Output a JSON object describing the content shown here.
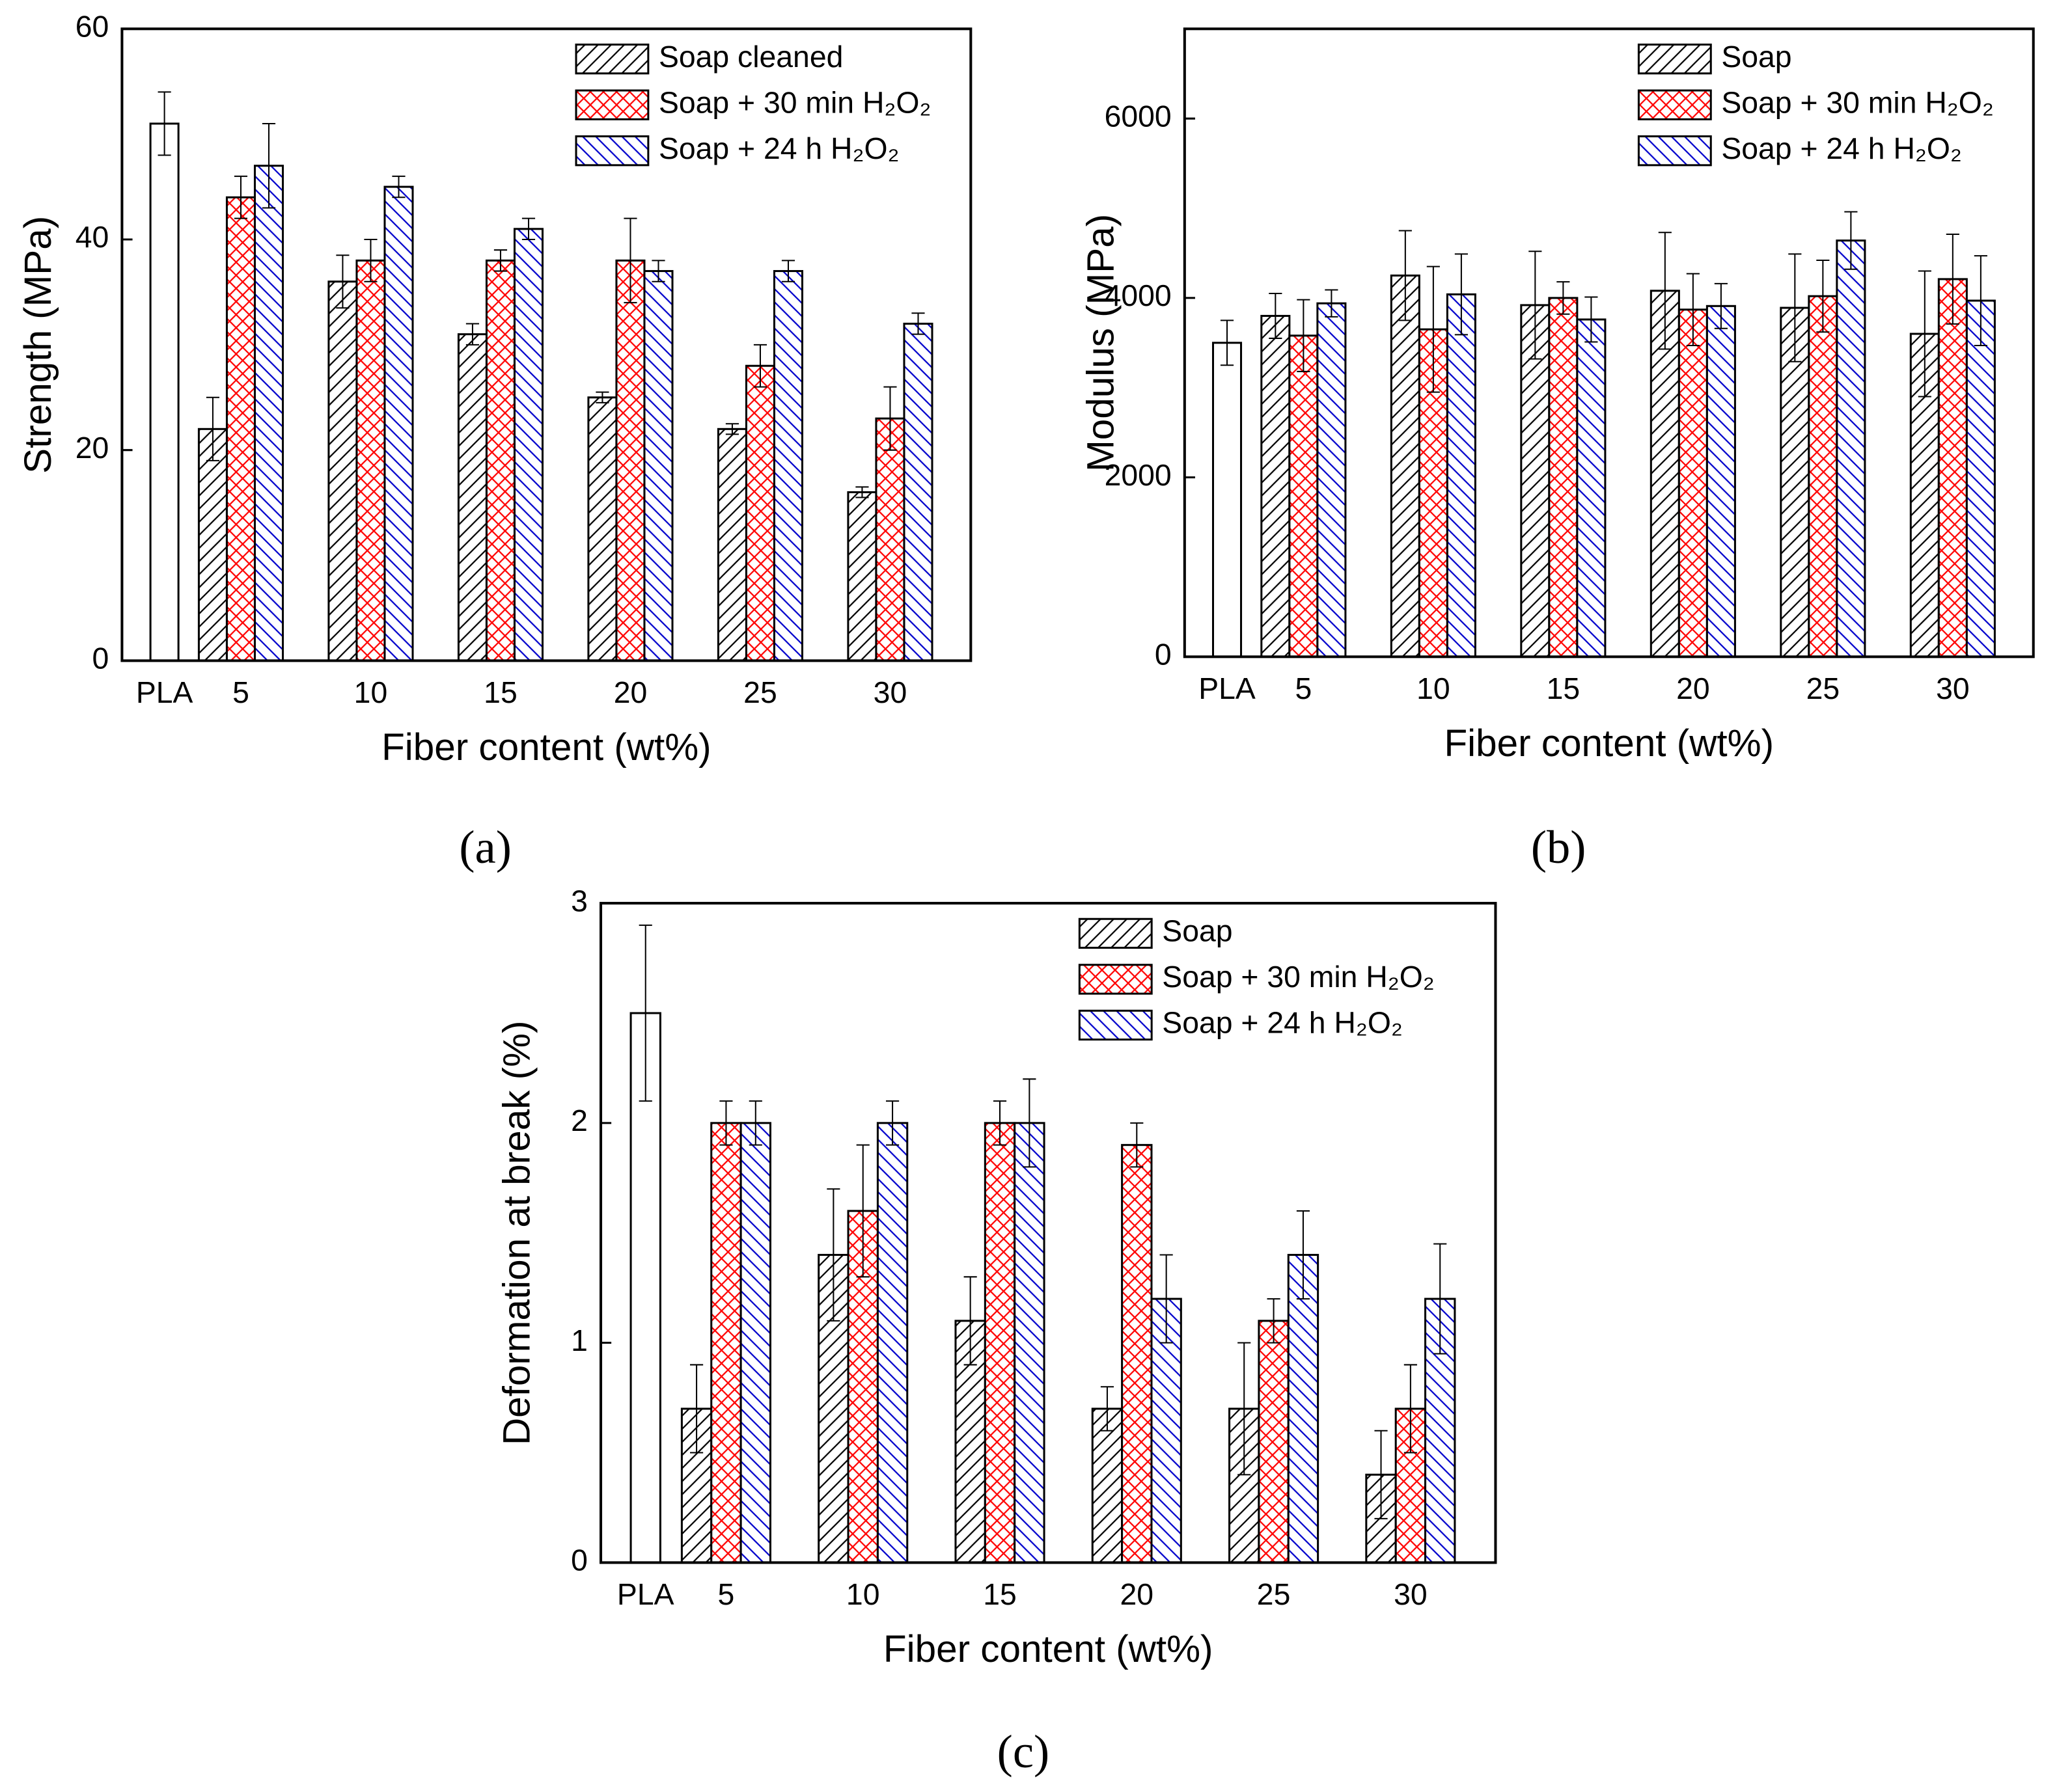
{
  "chart_data": [
    {
      "type": "bar",
      "caption": "(a)",
      "xlabel": "Fiber content (wt%)",
      "ylabel": "Strength (MPa)",
      "categories": [
        "PLA",
        "5",
        "10",
        "15",
        "20",
        "25",
        "30"
      ],
      "ylim": [
        0,
        60
      ],
      "yticks": [
        0,
        20,
        40,
        60
      ],
      "grid": false,
      "legend": "upper right",
      "series": [
        {
          "color": "#000000",
          "hatch": "none",
          "values": [
            51,
            null,
            null,
            null,
            null,
            null,
            null
          ],
          "errors": [
            3,
            null,
            null,
            null,
            null,
            null,
            null
          ]
        },
        {
          "name": "Soap cleaned",
          "color": "#000000",
          "hatch": "/",
          "values": [
            null,
            22,
            36,
            31,
            25,
            22,
            16
          ],
          "errors": [
            null,
            3,
            2.5,
            1,
            0.5,
            0.5,
            0.5
          ]
        },
        {
          "name": "Soap + 30 min H₂O₂",
          "color": "#ff0000",
          "hatch": "x",
          "values": [
            null,
            44,
            38,
            38,
            38,
            28,
            23
          ],
          "errors": [
            null,
            2,
            2,
            1,
            4,
            2,
            3
          ]
        },
        {
          "name": "Soap + 24 h H₂O₂",
          "color": "#0000cc",
          "hatch": "\\",
          "values": [
            null,
            47,
            45,
            41,
            37,
            37,
            32
          ],
          "errors": [
            null,
            4,
            1,
            1,
            1,
            1,
            1
          ]
        }
      ]
    },
    {
      "type": "bar",
      "caption": "(b)",
      "xlabel": "Fiber content (wt%)",
      "ylabel": "Modulus (MPa)",
      "categories": [
        "PLA",
        "5",
        "10",
        "15",
        "20",
        "25",
        "30"
      ],
      "ylim": [
        0,
        7000
      ],
      "yticks": [
        0,
        2000,
        4000,
        6000
      ],
      "grid": false,
      "legend": "upper right",
      "series": [
        {
          "color": "#000000",
          "hatch": "none",
          "values": [
            3500,
            null,
            null,
            null,
            null,
            null,
            null
          ],
          "errors": [
            250,
            null,
            null,
            null,
            null,
            null,
            null
          ]
        },
        {
          "name": "Soap",
          "color": "#000000",
          "hatch": "/",
          "values": [
            null,
            3800,
            4250,
            3920,
            4080,
            3890,
            3600
          ],
          "errors": [
            null,
            250,
            500,
            600,
            650,
            600,
            700
          ]
        },
        {
          "name": "Soap + 30 min H₂O₂",
          "color": "#ff0000",
          "hatch": "x",
          "values": [
            null,
            3580,
            3650,
            4000,
            3870,
            4020,
            4210
          ],
          "errors": [
            null,
            400,
            700,
            180,
            400,
            400,
            500
          ]
        },
        {
          "name": "Soap + 24 h H₂O₂",
          "color": "#0000cc",
          "hatch": "\\",
          "values": [
            null,
            3940,
            4040,
            3760,
            3910,
            4640,
            3970
          ],
          "errors": [
            null,
            150,
            450,
            250,
            250,
            320,
            500
          ]
        }
      ]
    },
    {
      "type": "bar",
      "caption": "(c)",
      "xlabel": "Fiber content (wt%)",
      "ylabel": "Deformation at break (%)",
      "categories": [
        "PLA",
        "5",
        "10",
        "15",
        "20",
        "25",
        "30"
      ],
      "ylim": [
        0,
        3
      ],
      "yticks": [
        0,
        1,
        2,
        3
      ],
      "grid": false,
      "legend": "upper right",
      "series": [
        {
          "color": "#000000",
          "hatch": "none",
          "values": [
            2.5,
            null,
            null,
            null,
            null,
            null,
            null
          ],
          "errors": [
            0.4,
            null,
            null,
            null,
            null,
            null,
            null
          ]
        },
        {
          "name": "Soap",
          "color": "#000000",
          "hatch": "/",
          "values": [
            null,
            0.7,
            1.4,
            1.1,
            0.7,
            0.7,
            0.4
          ],
          "errors": [
            null,
            0.2,
            0.3,
            0.2,
            0.1,
            0.3,
            0.2
          ]
        },
        {
          "name": "Soap + 30 min H₂O₂",
          "color": "#ff0000",
          "hatch": "x",
          "values": [
            null,
            2.0,
            1.6,
            2.0,
            1.9,
            1.1,
            0.7
          ],
          "errors": [
            null,
            0.1,
            0.3,
            0.1,
            0.1,
            0.1,
            0.2
          ]
        },
        {
          "name": "Soap + 24 h H₂O₂",
          "color": "#0000cc",
          "hatch": "\\",
          "values": [
            null,
            2.0,
            2.0,
            2.0,
            1.2,
            1.4,
            1.2
          ],
          "errors": [
            null,
            0.1,
            0.1,
            0.2,
            0.2,
            0.2,
            0.25
          ]
        }
      ]
    }
  ]
}
